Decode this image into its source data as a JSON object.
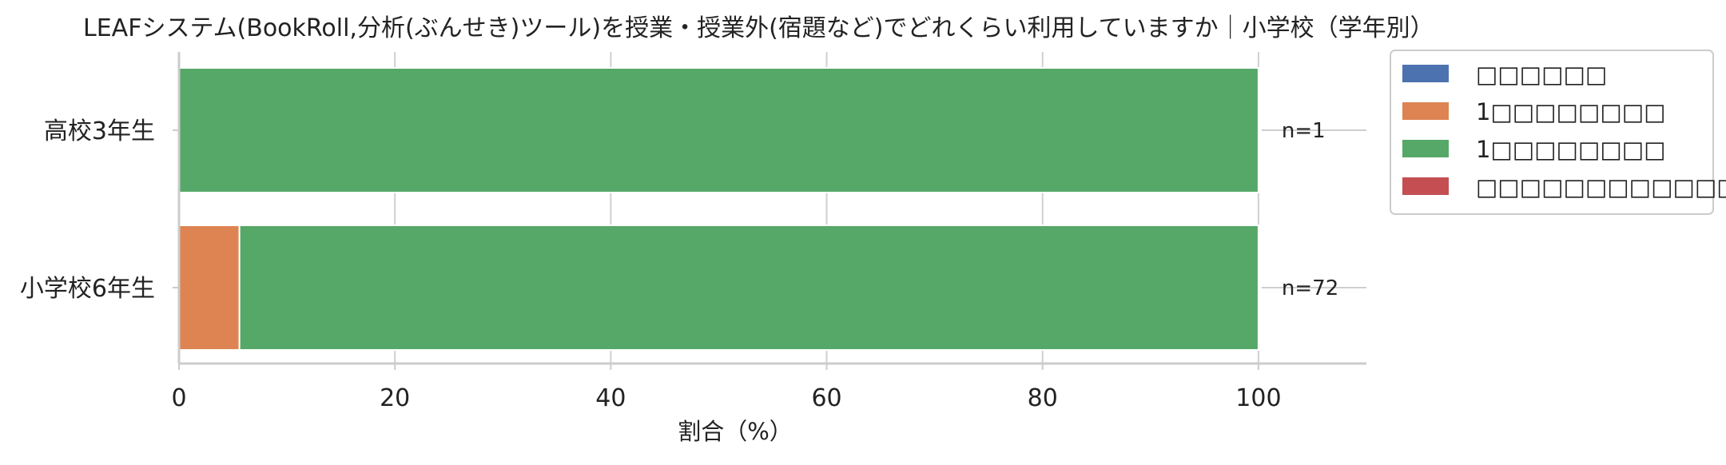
{
  "chart_data": {
    "type": "bar",
    "orientation": "horizontal",
    "stacked": true,
    "title": "LEAFシステム(BookRoll,分析(ぶんせき)ツール)を授業・授業外(宿題など)でどれくらい利用していますか｜小学校（学年別）",
    "xlabel": "割合（%）",
    "ylabel": "",
    "xlim": [
      0,
      110
    ],
    "x_ticks": [
      0,
      20,
      40,
      60,
      80,
      100
    ],
    "grid": "vertical",
    "legend_position": "outside-top-right",
    "categories": [
      "高校3年生",
      "小学校6年生"
    ],
    "n_labels": [
      "n=1",
      "n=72"
    ],
    "series": [
      {
        "name": "□□□□□□",
        "color": "#4c72b0",
        "values": [
          0,
          0
        ]
      },
      {
        "name": "1□□□□□□□□",
        "color": "#dd8452",
        "values": [
          0,
          5.6
        ]
      },
      {
        "name": "1□□□□□□□□",
        "color": "#55a868",
        "values": [
          100,
          94.4
        ]
      },
      {
        "name": "□□□□□□□□□□□□",
        "color": "#c44e52",
        "values": [
          0,
          0
        ]
      }
    ]
  }
}
